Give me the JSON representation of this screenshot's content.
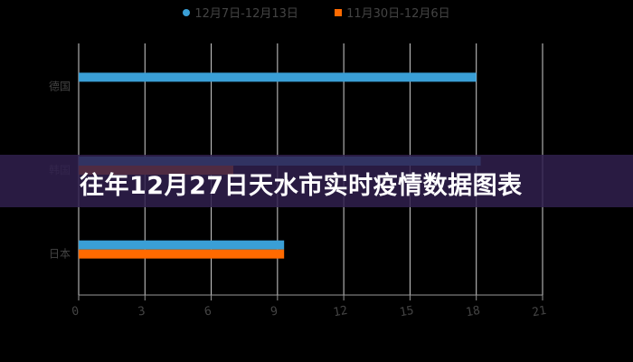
{
  "banner": {
    "title": "往年12月27日天水市实时疫情数据图表"
  },
  "chart_data": {
    "type": "bar",
    "orientation": "horizontal",
    "categories": [
      "德国",
      "韩国",
      "日本"
    ],
    "series": [
      {
        "name": "12月7日-12月13日",
        "color": "#3a9fd6",
        "values": [
          18,
          18.2,
          9.3
        ]
      },
      {
        "name": "11月30日-12月6日",
        "color": "#ff6a00",
        "values": [
          0,
          7,
          9.3
        ]
      }
    ],
    "xlim": [
      0,
      21
    ],
    "xticks": [
      "0",
      "3",
      "6",
      "9",
      "12",
      "15",
      "18",
      "21"
    ],
    "grid": true,
    "legend": "top"
  }
}
